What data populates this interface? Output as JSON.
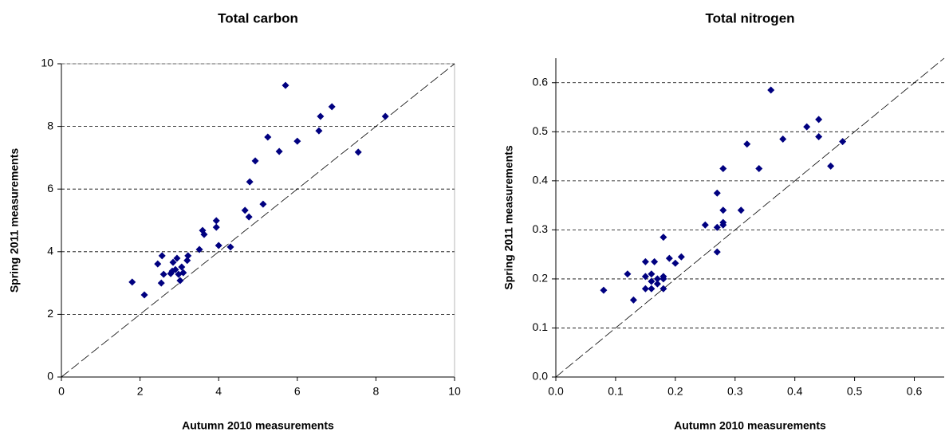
{
  "chart_data": [
    {
      "type": "scatter",
      "title": "Total carbon",
      "x_label": "Autumn 2010 measurements",
      "y_label": "Spring 2011 measurements",
      "color": "#000080",
      "diagonal": true,
      "grid": true,
      "xlim": [
        0,
        10
      ],
      "ylim": [
        0,
        10
      ],
      "xticks": [
        0,
        2,
        4,
        6,
        8,
        10
      ],
      "yticks": [
        0,
        2,
        4,
        6,
        8,
        10
      ],
      "x": [
        1.8,
        2.11,
        2.45,
        2.56,
        2.54,
        2.6,
        2.78,
        2.84,
        2.9,
        2.94,
        2.98,
        3.06,
        3.1,
        3.02,
        2.82,
        3.2,
        3.22,
        3.51,
        3.59,
        3.63,
        3.94,
        3.94,
        4.0,
        4.3,
        4.67,
        4.77,
        4.79,
        4.93,
        5.13,
        5.25,
        5.54,
        5.7,
        6.0,
        6.55,
        6.59,
        6.88,
        7.55,
        8.24
      ],
      "values": [
        3.03,
        2.62,
        3.61,
        3.87,
        3.0,
        3.28,
        3.3,
        3.66,
        3.43,
        3.79,
        3.28,
        3.51,
        3.33,
        3.08,
        3.38,
        3.72,
        3.87,
        4.07,
        4.68,
        4.55,
        4.99,
        4.78,
        4.2,
        4.15,
        5.32,
        5.11,
        6.23,
        6.9,
        5.52,
        7.66,
        7.2,
        9.31,
        7.53,
        7.86,
        8.32,
        8.63,
        7.18,
        8.32
      ]
    },
    {
      "type": "scatter",
      "title": "Total nitrogen",
      "x_label": "Autumn 2010 measurements",
      "y_label": "Spring 2011 measurements",
      "color": "#000080",
      "diagonal": true,
      "grid": true,
      "xlim": [
        0,
        0.65
      ],
      "ylim": [
        0,
        0.65
      ],
      "xticks": [
        {
          "value": 0,
          "label": "0.0"
        },
        0.1,
        0.2,
        0.3,
        0.4,
        0.5,
        0.6
      ],
      "yticks": [
        {
          "value": 0,
          "label": "0.0"
        },
        0.1,
        0.2,
        0.3,
        0.4,
        0.5,
        0.6
      ],
      "x": [
        0.08,
        0.12,
        0.13,
        0.15,
        0.15,
        0.15,
        0.16,
        0.16,
        0.16,
        0.165,
        0.17,
        0.17,
        0.18,
        0.18,
        0.18,
        0.18,
        0.19,
        0.2,
        0.21,
        0.25,
        0.27,
        0.28,
        0.28,
        0.27,
        0.27,
        0.28,
        0.28,
        0.31,
        0.32,
        0.34,
        0.36,
        0.38,
        0.42,
        0.44,
        0.44,
        0.46,
        0.48
      ],
      "values": [
        0.177,
        0.21,
        0.157,
        0.235,
        0.205,
        0.18,
        0.21,
        0.195,
        0.18,
        0.235,
        0.2,
        0.19,
        0.2,
        0.205,
        0.18,
        0.285,
        0.242,
        0.232,
        0.245,
        0.31,
        0.305,
        0.31,
        0.315,
        0.255,
        0.375,
        0.34,
        0.425,
        0.34,
        0.475,
        0.425,
        0.585,
        0.485,
        0.51,
        0.525,
        0.49,
        0.43,
        0.48
      ]
    }
  ]
}
